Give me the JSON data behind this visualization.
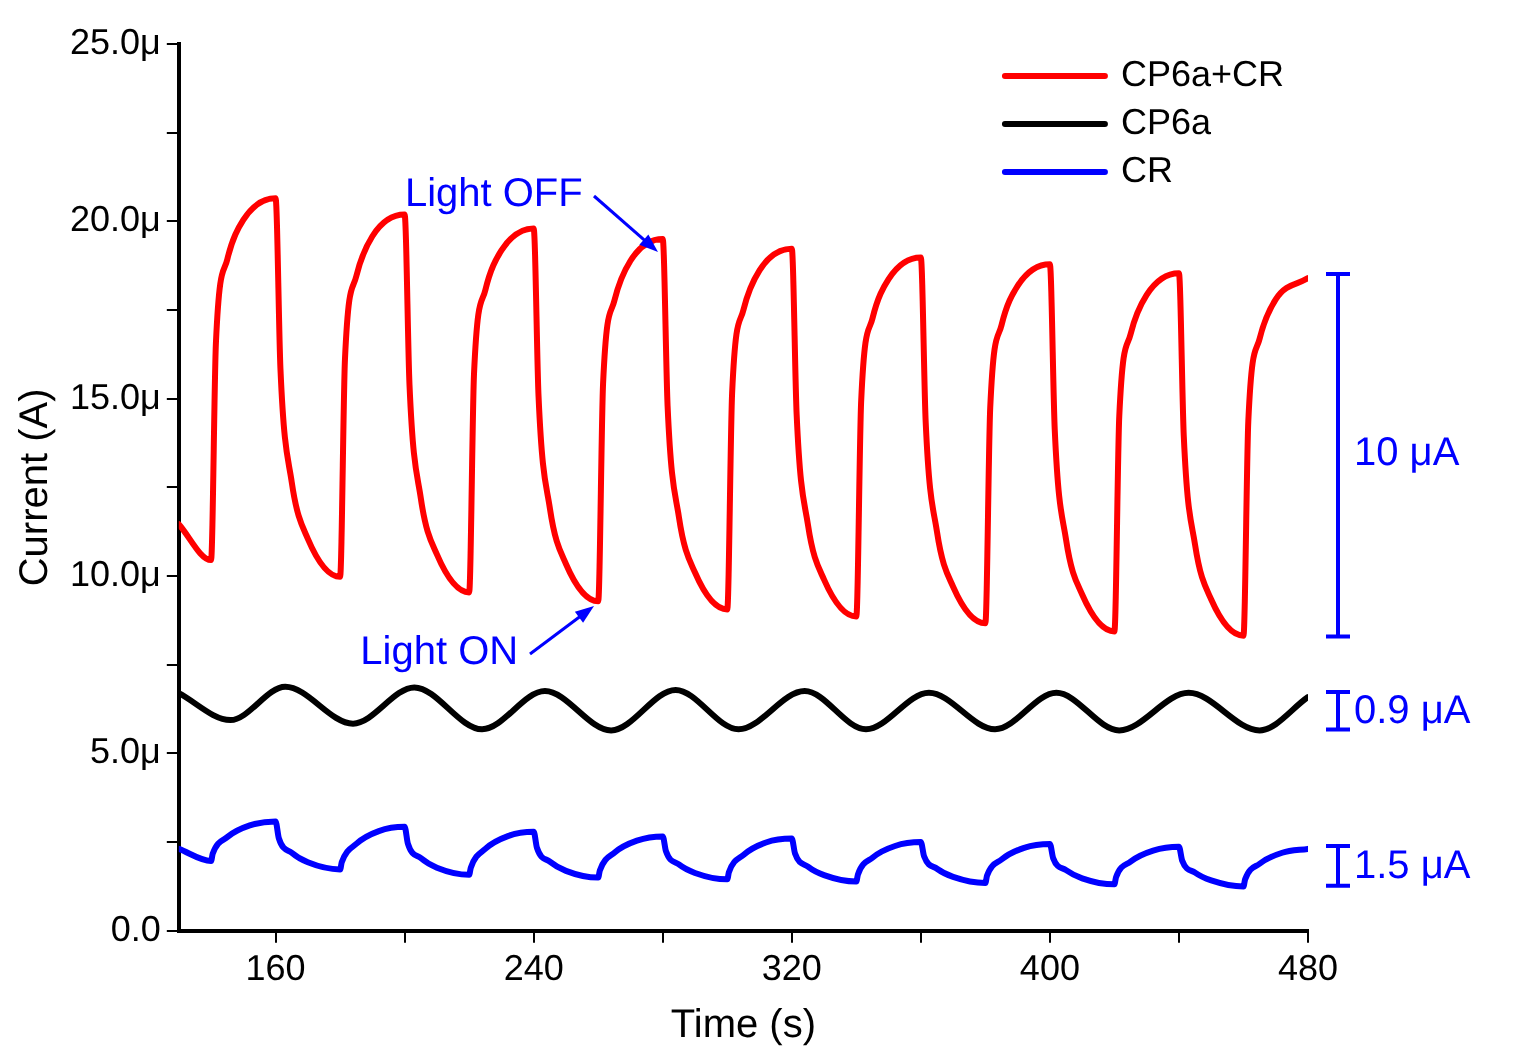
{
  "chart_data": {
    "type": "line",
    "xlabel": "Time (s)",
    "ylabel": "Current (A)",
    "xlim": [
      130,
      480
    ],
    "xticks": [
      160,
      {
        "value": 200,
        "label": null
      },
      240,
      {
        "value": 280,
        "label": null
      },
      320,
      {
        "value": 360,
        "label": null
      },
      400,
      {
        "value": 440,
        "label": null
      },
      480
    ],
    "ylim": [
      0,
      25
    ],
    "yticks": [
      {
        "value": 0,
        "label": "0.0"
      },
      {
        "value": 2.5,
        "label": null
      },
      {
        "value": 5,
        "label": "5.0μ"
      },
      {
        "value": 7.5,
        "label": null
      },
      {
        "value": 10,
        "label": "10.0μ"
      },
      {
        "value": 12.5,
        "label": null
      },
      {
        "value": 15,
        "label": "15.0μ"
      },
      {
        "value": 17.5,
        "label": null
      },
      {
        "value": 20,
        "label": "20.0μ"
      },
      {
        "value": 22.5,
        "label": null
      },
      {
        "value": 25,
        "label": "25.0μ"
      }
    ],
    "grid": false,
    "legend": "top right",
    "marker": "none",
    "line_style": "solid",
    "series": [
      {
        "name": "CP6a+CR",
        "color": "#ff0000",
        "x": [
          130,
          140,
          141.5,
          145,
          150,
          160,
          161.5,
          165,
          170,
          180,
          181.5,
          185,
          190,
          200,
          201.5,
          205,
          210,
          220,
          221.5,
          225,
          230,
          240,
          241.5,
          245,
          250,
          260,
          261.5,
          265,
          270,
          280,
          281.5,
          285,
          290,
          300,
          301.5,
          305,
          310,
          320,
          321.5,
          325,
          330,
          340,
          341.5,
          345,
          350,
          360,
          361.5,
          365,
          370,
          380,
          381.5,
          385,
          390,
          400,
          401.5,
          405,
          410,
          420,
          421.5,
          425,
          430,
          440,
          441.5,
          445,
          450,
          460,
          461.5,
          465,
          470,
          480
        ],
        "values": [
          11.46,
          10.45,
          16.57,
          18.92,
          20.04,
          20.65,
          15.85,
          12.65,
          11.05,
          9.98,
          16.11,
          18.45,
          19.58,
          20.19,
          15.4,
          12.2,
          10.61,
          9.54,
          15.7,
          18.06,
          19.18,
          19.8,
          15.07,
          11.92,
          10.34,
          9.29,
          15.42,
          17.76,
          18.89,
          19.5,
          14.8,
          11.67,
          10.1,
          9.06,
          15.16,
          17.5,
          18.62,
          19.23,
          14.56,
          11.45,
          9.9,
          8.86,
          14.93,
          17.26,
          18.37,
          18.98,
          14.34,
          11.25,
          9.7,
          8.67,
          14.74,
          17.07,
          18.18,
          18.79,
          14.13,
          11.03,
          9.48,
          8.44,
          14.5,
          16.82,
          17.93,
          18.54,
          13.94,
          10.88,
          9.34,
          8.32,
          14.37,
          16.69,
          17.8,
          18.4
        ]
      },
      {
        "name": "CP6a",
        "color": "#000000",
        "x": [
          130,
          146,
          163,
          184,
          203,
          224,
          243.5,
          264,
          284,
          303.5,
          324,
          343,
          362.5,
          383,
          402,
          421.5,
          443,
          465,
          480
        ],
        "values": [
          6.7,
          5.94,
          6.88,
          5.84,
          6.86,
          5.68,
          6.76,
          5.65,
          6.79,
          5.68,
          6.76,
          5.68,
          6.71,
          5.68,
          6.71,
          5.65,
          6.71,
          5.65,
          6.59
        ]
      },
      {
        "name": "CR",
        "color": "#0000ff",
        "x": [
          130,
          140,
          140.5,
          145,
          152,
          160,
          161,
          165,
          170,
          180,
          180.5,
          185,
          192,
          200,
          201,
          205,
          210,
          220,
          220.5,
          225,
          232,
          240,
          241,
          245,
          250,
          260,
          260.5,
          265,
          272,
          280,
          281,
          285,
          290,
          300,
          300.5,
          305,
          312,
          320,
          321,
          325,
          330,
          340,
          340.5,
          345,
          352,
          360,
          361,
          365,
          370,
          380,
          380.5,
          385,
          392,
          400,
          401,
          405,
          410,
          420,
          420.5,
          425,
          432,
          440,
          441,
          445,
          450,
          460,
          460.5,
          465,
          472,
          480
        ],
        "values": [
          2.31,
          1.97,
          2.17,
          2.64,
          2.97,
          3.08,
          2.61,
          2.2,
          1.93,
          1.73,
          1.93,
          2.45,
          2.81,
          2.93,
          2.46,
          2.05,
          1.78,
          1.58,
          1.78,
          2.31,
          2.67,
          2.79,
          2.34,
          1.95,
          1.69,
          1.5,
          1.7,
          2.2,
          2.54,
          2.66,
          2.24,
          1.87,
          1.63,
          1.45,
          1.65,
          2.14,
          2.49,
          2.6,
          2.18,
          1.81,
          1.57,
          1.39,
          1.59,
          2.06,
          2.39,
          2.5,
          2.1,
          1.75,
          1.52,
          1.35,
          1.55,
          2.01,
          2.34,
          2.45,
          2.05,
          1.71,
          1.48,
          1.31,
          1.51,
          1.95,
          2.26,
          2.37,
          1.98,
          1.64,
          1.42,
          1.25,
          1.45,
          1.89,
          2.2,
          2.31
        ]
      }
    ],
    "annotations": [
      {
        "text": "Light OFF",
        "x": 280,
        "y": 19.5
      },
      {
        "text": "Light ON",
        "x": 260,
        "y": 9.29
      },
      "10 μA",
      "0.9 μA",
      "1.5 μA"
    ]
  }
}
